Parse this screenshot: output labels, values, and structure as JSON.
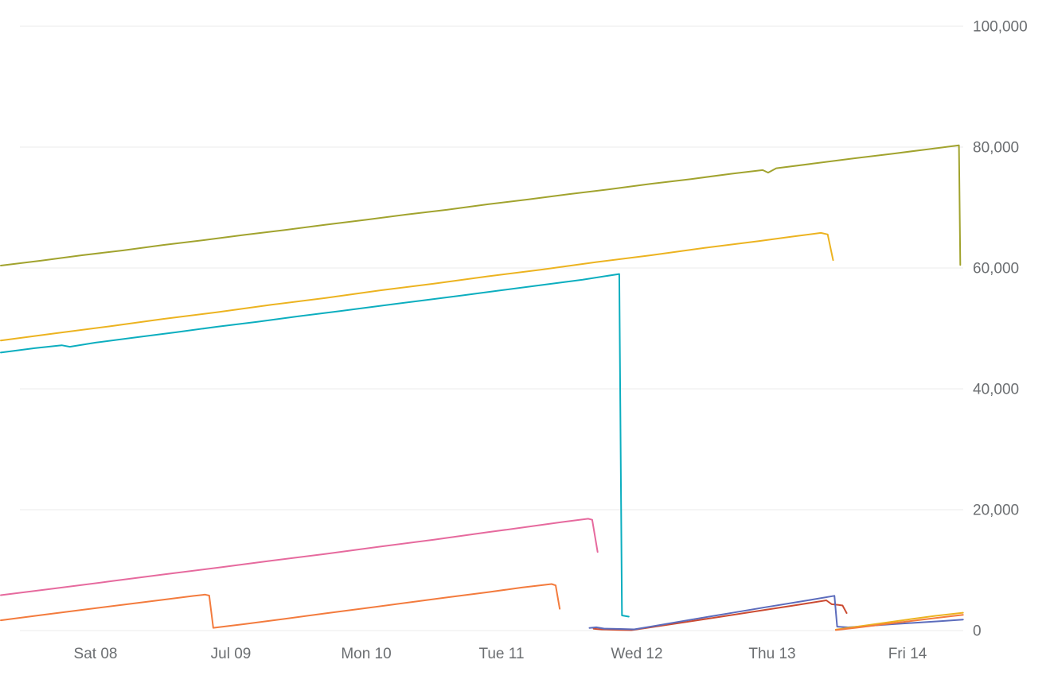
{
  "page": {
    "background": "#ffffff"
  },
  "chart_data": {
    "type": "line",
    "title": "",
    "xlabel": "",
    "ylabel": "",
    "legend": "none",
    "grid": "horizontal",
    "xlim": [
      0.29,
      7.41
    ],
    "ylim": [
      0,
      104000
    ],
    "colors": {
      "grid": "#ebebeb",
      "axis_label": "#6b6e71",
      "background": "#ffffff"
    },
    "x_ticks": [
      {
        "v": 1,
        "label": "Sat 08"
      },
      {
        "v": 2,
        "label": "Jul 09"
      },
      {
        "v": 3,
        "label": "Mon 10"
      },
      {
        "v": 4,
        "label": "Tue 11"
      },
      {
        "v": 5,
        "label": "Wed 12"
      },
      {
        "v": 6,
        "label": "Thu 13"
      },
      {
        "v": 7,
        "label": "Fri 14"
      }
    ],
    "y_ticks": [
      {
        "v": 0,
        "label": "0"
      },
      {
        "v": 20000,
        "label": "20,000"
      },
      {
        "v": 40000,
        "label": "40,000"
      },
      {
        "v": 60000,
        "label": "60,000"
      },
      {
        "v": 80000,
        "label": "80,000"
      },
      {
        "v": 100000,
        "label": "100,000"
      }
    ],
    "series": [
      {
        "name": "olive",
        "color": "#a1a32e",
        "points": [
          [
            0.3,
            60400
          ],
          [
            0.6,
            61220
          ],
          [
            0.9,
            62100
          ],
          [
            1.2,
            62900
          ],
          [
            1.5,
            63800
          ],
          [
            1.8,
            64600
          ],
          [
            2.1,
            65480
          ],
          [
            2.4,
            66280
          ],
          [
            2.7,
            67160
          ],
          [
            3.0,
            67980
          ],
          [
            3.3,
            68850
          ],
          [
            3.6,
            69650
          ],
          [
            3.9,
            70540
          ],
          [
            4.2,
            71340
          ],
          [
            4.5,
            72220
          ],
          [
            4.8,
            73030
          ],
          [
            5.1,
            73910
          ],
          [
            5.4,
            74710
          ],
          [
            5.7,
            75590
          ],
          [
            5.93,
            76200
          ],
          [
            5.97,
            75780
          ],
          [
            6.03,
            76500
          ],
          [
            6.3,
            77260
          ],
          [
            6.6,
            78120
          ],
          [
            6.9,
            78930
          ],
          [
            7.15,
            79650
          ],
          [
            7.38,
            80300
          ],
          [
            7.39,
            60500
          ]
        ]
      },
      {
        "name": "gold",
        "color": "#ecb320",
        "points": [
          [
            0.3,
            48000
          ],
          [
            0.7,
            49180
          ],
          [
            1.1,
            50330
          ],
          [
            1.5,
            51560
          ],
          [
            1.9,
            52690
          ],
          [
            2.3,
            53910
          ],
          [
            2.7,
            55040
          ],
          [
            3.1,
            56270
          ],
          [
            3.5,
            57390
          ],
          [
            3.9,
            58620
          ],
          [
            4.3,
            59740
          ],
          [
            4.7,
            60970
          ],
          [
            5.1,
            62090
          ],
          [
            5.5,
            63320
          ],
          [
            5.9,
            64440
          ],
          [
            6.15,
            65200
          ],
          [
            6.36,
            65800
          ],
          [
            6.41,
            65550
          ],
          [
            6.45,
            61300
          ]
        ]
      },
      {
        "name": "teal",
        "color": "#0caebf",
        "points": [
          [
            0.3,
            46000
          ],
          [
            0.55,
            46720
          ],
          [
            0.75,
            47210
          ],
          [
            0.81,
            46960
          ],
          [
            1.0,
            47640
          ],
          [
            1.3,
            48520
          ],
          [
            1.6,
            49380
          ],
          [
            1.9,
            50270
          ],
          [
            2.2,
            51110
          ],
          [
            2.5,
            52010
          ],
          [
            2.8,
            52840
          ],
          [
            3.1,
            53720
          ],
          [
            3.4,
            54580
          ],
          [
            3.7,
            55440
          ],
          [
            4.0,
            56310
          ],
          [
            4.3,
            57190
          ],
          [
            4.6,
            58060
          ],
          [
            4.87,
            59000
          ],
          [
            4.89,
            2500
          ],
          [
            4.94,
            2300
          ]
        ]
      },
      {
        "name": "pink",
        "color": "#e66a9e",
        "points": [
          [
            0.3,
            5850
          ],
          [
            0.7,
            6980
          ],
          [
            1.1,
            8120
          ],
          [
            1.5,
            9270
          ],
          [
            1.9,
            10390
          ],
          [
            2.3,
            11560
          ],
          [
            2.7,
            12690
          ],
          [
            3.1,
            13880
          ],
          [
            3.5,
            15030
          ],
          [
            3.9,
            16280
          ],
          [
            4.2,
            17180
          ],
          [
            4.45,
            17960
          ],
          [
            4.64,
            18500
          ],
          [
            4.67,
            18330
          ],
          [
            4.71,
            13000
          ]
        ]
      },
      {
        "name": "orange",
        "color": "#f37b3d",
        "points": [
          [
            0.3,
            1700
          ],
          [
            0.6,
            2560
          ],
          [
            0.9,
            3420
          ],
          [
            1.2,
            4260
          ],
          [
            1.5,
            5110
          ],
          [
            1.72,
            5720
          ],
          [
            1.81,
            5950
          ],
          [
            1.84,
            5790
          ],
          [
            1.87,
            450
          ],
          [
            2.1,
            1060
          ],
          [
            2.4,
            1950
          ],
          [
            2.7,
            2840
          ],
          [
            3.0,
            3710
          ],
          [
            3.3,
            4610
          ],
          [
            3.6,
            5490
          ],
          [
            3.9,
            6360
          ],
          [
            4.15,
            7120
          ],
          [
            4.37,
            7700
          ],
          [
            4.4,
            7480
          ],
          [
            4.43,
            3600
          ]
        ]
      },
      {
        "name": "red",
        "color": "#cb4b32",
        "points": [
          [
            4.68,
            300
          ],
          [
            4.74,
            180
          ],
          [
            4.85,
            120
          ],
          [
            4.96,
            60
          ],
          [
            5.05,
            350
          ],
          [
            5.3,
            1200
          ],
          [
            5.6,
            2220
          ],
          [
            5.9,
            3260
          ],
          [
            6.15,
            4120
          ],
          [
            6.4,
            5000
          ],
          [
            6.44,
            4350
          ],
          [
            6.49,
            4250
          ],
          [
            6.52,
            4150
          ],
          [
            6.55,
            2900
          ]
        ]
      },
      {
        "name": "indigo",
        "color": "#5c6cbc",
        "points": [
          [
            4.65,
            420
          ],
          [
            4.7,
            540
          ],
          [
            4.76,
            320
          ],
          [
            4.88,
            260
          ],
          [
            4.98,
            200
          ],
          [
            5.1,
            650
          ],
          [
            5.4,
            1800
          ],
          [
            5.7,
            2920
          ],
          [
            6.0,
            4040
          ],
          [
            6.25,
            4950
          ],
          [
            6.46,
            5750
          ],
          [
            6.48,
            650
          ],
          [
            6.56,
            520
          ],
          [
            6.7,
            760
          ],
          [
            6.9,
            1060
          ],
          [
            7.1,
            1360
          ],
          [
            7.25,
            1560
          ],
          [
            7.41,
            1820
          ]
        ]
      },
      {
        "name": "gold-2",
        "color": "#ecb320",
        "points": [
          [
            6.47,
            150
          ],
          [
            6.6,
            560
          ],
          [
            6.8,
            1190
          ],
          [
            7.0,
            1810
          ],
          [
            7.2,
            2420
          ],
          [
            7.41,
            2950
          ]
        ]
      },
      {
        "name": "orange-2",
        "color": "#f37b3d",
        "points": [
          [
            6.47,
            80
          ],
          [
            6.62,
            460
          ],
          [
            6.82,
            1010
          ],
          [
            7.02,
            1560
          ],
          [
            7.22,
            2110
          ],
          [
            7.41,
            2600
          ]
        ]
      }
    ]
  }
}
